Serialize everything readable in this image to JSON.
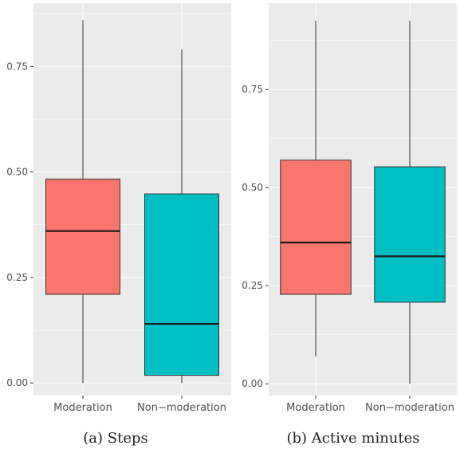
{
  "chart_data": [
    {
      "type": "box",
      "caption": "(a) Steps",
      "categories": [
        "Moderation",
        "Non−moderation"
      ],
      "colors": [
        "#f8766d",
        "#00bfc4"
      ],
      "ylim": [
        -0.03,
        0.9
      ],
      "yticks": [
        0.0,
        0.25,
        0.5,
        0.75
      ],
      "ytick_labels": [
        "0.00",
        "0.25",
        "0.50",
        "0.75"
      ],
      "boxes": [
        {
          "min": 0.0,
          "q1": 0.21,
          "median": 0.36,
          "q3": 0.483,
          "max": 0.86
        },
        {
          "min": 0.0,
          "q1": 0.018,
          "median": 0.14,
          "q3": 0.448,
          "max": 0.79
        }
      ]
    },
    {
      "type": "box",
      "caption": "(b) Active minutes",
      "categories": [
        "Moderation",
        "Non−moderation"
      ],
      "colors": [
        "#f8766d",
        "#00bfc4"
      ],
      "ylim": [
        -0.03,
        0.97
      ],
      "yticks": [
        0.0,
        0.25,
        0.5,
        0.75
      ],
      "ytick_labels": [
        "0.00",
        "0.25",
        "0.50",
        "0.75"
      ],
      "boxes": [
        {
          "min": 0.07,
          "q1": 0.228,
          "median": 0.36,
          "q3": 0.57,
          "max": 0.925
        },
        {
          "min": 0.0,
          "q1": 0.208,
          "median": 0.325,
          "q3": 0.553,
          "max": 0.925
        }
      ]
    }
  ]
}
